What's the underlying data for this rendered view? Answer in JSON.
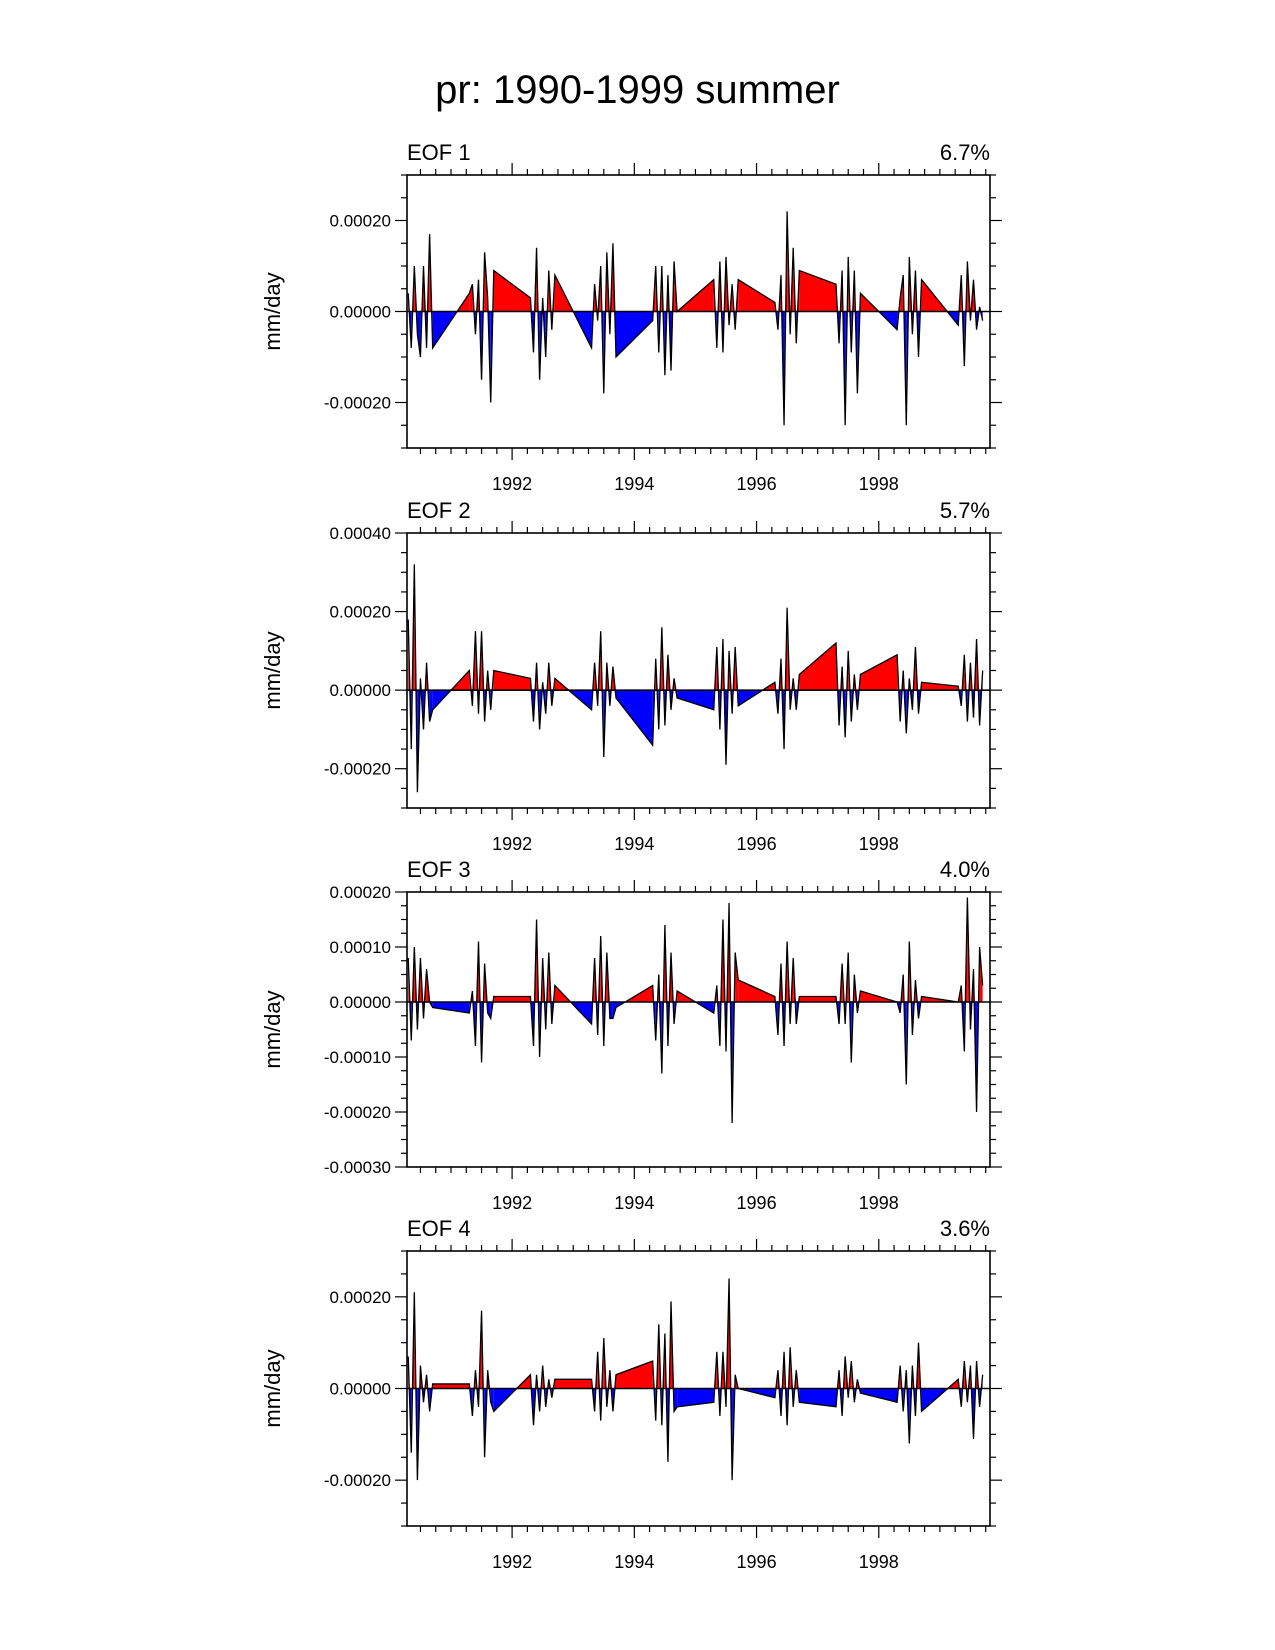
{
  "title": "pr: 1990-1999 summer",
  "colors": {
    "positive": "#ff0000",
    "negative": "#0000ff",
    "line": "#000000"
  },
  "chart_data": [
    {
      "type": "area",
      "panel_label": "EOF 1",
      "variance": "6.7%",
      "ylabel": "mm/day",
      "xlabel": "",
      "xlim": [
        1990.28,
        1999.82
      ],
      "ylim": [
        -0.0003,
        0.0003
      ],
      "yticks": [
        -0.0002,
        0.0,
        0.0002
      ],
      "ytick_labels": [
        "-0.00020",
        "0.00000",
        "0.00020"
      ],
      "xticks": [
        1992,
        1994,
        1996,
        1998
      ],
      "xtick_labels": [
        "1992",
        "1994",
        "1996",
        "1998"
      ],
      "x": [
        1990.3,
        1990.35,
        1990.4,
        1990.45,
        1990.5,
        1990.55,
        1990.6,
        1990.65,
        1990.7,
        1991.3,
        1991.35,
        1991.4,
        1991.45,
        1991.5,
        1991.55,
        1991.6,
        1991.65,
        1991.7,
        1992.3,
        1992.35,
        1992.4,
        1992.45,
        1992.5,
        1992.55,
        1992.6,
        1992.65,
        1992.7,
        1993.3,
        1993.35,
        1993.4,
        1993.45,
        1993.5,
        1993.55,
        1993.6,
        1993.65,
        1993.7,
        1994.3,
        1994.35,
        1994.4,
        1994.45,
        1994.5,
        1994.55,
        1994.6,
        1994.65,
        1994.7,
        1995.3,
        1995.35,
        1995.4,
        1995.45,
        1995.5,
        1995.55,
        1995.6,
        1995.65,
        1995.7,
        1996.3,
        1996.35,
        1996.4,
        1996.45,
        1996.5,
        1996.55,
        1996.6,
        1996.65,
        1996.7,
        1997.3,
        1997.35,
        1997.4,
        1997.45,
        1997.5,
        1997.55,
        1997.6,
        1997.65,
        1997.7,
        1998.3,
        1998.35,
        1998.4,
        1998.45,
        1998.5,
        1998.55,
        1998.6,
        1998.65,
        1998.7,
        1999.3,
        1999.35,
        1999.4,
        1999.45,
        1999.5,
        1999.55,
        1999.6,
        1999.65,
        1999.7
      ],
      "values": [
        4e-05,
        -8e-05,
        0.0001,
        -5e-05,
        -0.0001,
        0.0001,
        -8e-05,
        0.00017,
        -8e-05,
        4e-05,
        6e-05,
        -5e-05,
        7e-05,
        -0.00015,
        0.00013,
        3e-05,
        -0.0002,
        9e-05,
        3e-05,
        -9e-05,
        0.00014,
        -0.00015,
        3e-05,
        -0.0001,
        9e-05,
        -4e-05,
        8e-05,
        -8e-05,
        6e-05,
        -2e-05,
        0.0001,
        -0.00018,
        0.00013,
        -5e-05,
        0.00015,
        -0.0001,
        -2e-05,
        0.0001,
        -9e-05,
        0.0001,
        -0.00014,
        8e-05,
        -0.00013,
        0.00011,
        -0.0,
        7e-05,
        -8e-05,
        0.00011,
        -9e-05,
        0.00012,
        -3e-05,
        6e-05,
        -4e-05,
        7e-05,
        2e-05,
        -4e-05,
        8e-05,
        -0.00025,
        0.00022,
        -5e-05,
        0.00014,
        -7e-05,
        9e-05,
        6e-05,
        -7e-05,
        9e-05,
        -0.00025,
        0.00012,
        -9e-05,
        9e-05,
        -0.00018,
        4e-05,
        -4e-05,
        3e-05,
        8e-05,
        -0.00025,
        0.00012,
        -5e-05,
        9e-05,
        -0.0001,
        7e-05,
        -3e-05,
        8e-05,
        -0.00012,
        0.00011,
        -2e-05,
        7e-05,
        -4e-05,
        1e-05,
        -2e-05
      ]
    },
    {
      "type": "area",
      "panel_label": "EOF 2",
      "variance": "5.7%",
      "ylabel": "mm/day",
      "xlabel": "",
      "xlim": [
        1990.28,
        1999.82
      ],
      "ylim": [
        -0.0003,
        0.0004
      ],
      "yticks": [
        -0.0002,
        0.0,
        0.0002,
        0.0004
      ],
      "ytick_labels": [
        "-0.00020",
        "0.00000",
        "0.00020",
        "0.00040"
      ],
      "xticks": [
        1992,
        1994,
        1996,
        1998
      ],
      "xtick_labels": [
        "1992",
        "1994",
        "1996",
        "1998"
      ],
      "x": [
        1990.3,
        1990.35,
        1990.4,
        1990.45,
        1990.5,
        1990.55,
        1990.6,
        1990.65,
        1990.7,
        1991.3,
        1991.35,
        1991.4,
        1991.45,
        1991.5,
        1991.55,
        1991.6,
        1991.65,
        1991.7,
        1992.3,
        1992.35,
        1992.4,
        1992.45,
        1992.5,
        1992.55,
        1992.6,
        1992.65,
        1992.7,
        1993.3,
        1993.35,
        1993.4,
        1993.45,
        1993.5,
        1993.55,
        1993.6,
        1993.65,
        1993.7,
        1994.3,
        1994.35,
        1994.4,
        1994.45,
        1994.5,
        1994.55,
        1994.6,
        1994.65,
        1994.7,
        1995.3,
        1995.35,
        1995.4,
        1995.45,
        1995.5,
        1995.55,
        1995.6,
        1995.65,
        1995.7,
        1996.3,
        1996.35,
        1996.4,
        1996.45,
        1996.5,
        1996.55,
        1996.6,
        1996.65,
        1996.7,
        1997.3,
        1997.35,
        1997.4,
        1997.45,
        1997.5,
        1997.55,
        1997.6,
        1997.65,
        1997.7,
        1998.3,
        1998.35,
        1998.4,
        1998.45,
        1998.5,
        1998.55,
        1998.6,
        1998.65,
        1998.7,
        1999.3,
        1999.35,
        1999.4,
        1999.45,
        1999.5,
        1999.55,
        1999.6,
        1999.65,
        1999.7
      ],
      "values": [
        0.00018,
        -0.00015,
        0.00032,
        -0.00026,
        3e-05,
        -0.0001,
        7e-05,
        -8e-05,
        -5e-05,
        5e-05,
        -4e-05,
        0.00015,
        -6e-05,
        0.00015,
        -8e-05,
        5e-05,
        -5e-05,
        5e-05,
        3e-05,
        -8e-05,
        7e-05,
        -0.0001,
        2e-05,
        -6e-05,
        7e-05,
        -4e-05,
        3e-05,
        -5e-05,
        7e-05,
        -4e-05,
        0.00015,
        -0.00017,
        7e-05,
        -4e-05,
        6e-05,
        -2e-05,
        -0.00014,
        8e-05,
        -0.0001,
        0.00016,
        -9e-05,
        9e-05,
        -5e-05,
        3e-05,
        -2e-05,
        -5e-05,
        0.00011,
        -0.0001,
        0.00013,
        -0.00019,
        0.0001,
        -6e-05,
        0.00011,
        -4e-05,
        2e-05,
        -6e-05,
        8e-05,
        -0.00015,
        0.00021,
        -5e-05,
        3e-05,
        -5e-05,
        4e-05,
        0.00012,
        -9e-05,
        6e-05,
        -0.00012,
        0.0001,
        -8e-05,
        4e-05,
        -5e-05,
        4e-05,
        9e-05,
        -8e-05,
        5e-05,
        -0.00011,
        3e-05,
        -5e-05,
        0.00011,
        -6e-05,
        2e-05,
        1e-05,
        -4e-05,
        9e-05,
        -8e-05,
        7e-05,
        -7e-05,
        0.00013,
        -9e-05,
        5e-05
      ]
    },
    {
      "type": "area",
      "panel_label": "EOF 3",
      "variance": "4.0%",
      "ylabel": "mm/day",
      "xlabel": "",
      "xlim": [
        1990.28,
        1999.82
      ],
      "ylim": [
        -0.0003,
        0.0002
      ],
      "yticks": [
        -0.0003,
        -0.0002,
        -0.0001,
        0.0,
        0.0001,
        0.0002
      ],
      "ytick_labels": [
        "-0.00030",
        "-0.00020",
        "-0.00010",
        "0.00000",
        "0.00010",
        "0.00020"
      ],
      "xticks": [
        1992,
        1994,
        1996,
        1998
      ],
      "xtick_labels": [
        "1992",
        "1994",
        "1996",
        "1998"
      ],
      "x": [
        1990.3,
        1990.35,
        1990.4,
        1990.45,
        1990.5,
        1990.55,
        1990.6,
        1990.65,
        1990.7,
        1991.3,
        1991.35,
        1991.4,
        1991.45,
        1991.5,
        1991.55,
        1991.6,
        1991.65,
        1991.7,
        1992.3,
        1992.35,
        1992.4,
        1992.45,
        1992.5,
        1992.55,
        1992.6,
        1992.65,
        1992.7,
        1993.3,
        1993.35,
        1993.4,
        1993.45,
        1993.5,
        1993.55,
        1993.6,
        1993.65,
        1993.7,
        1994.3,
        1994.35,
        1994.4,
        1994.45,
        1994.5,
        1994.55,
        1994.6,
        1994.65,
        1994.7,
        1995.3,
        1995.35,
        1995.4,
        1995.45,
        1995.5,
        1995.55,
        1995.6,
        1995.65,
        1995.7,
        1996.3,
        1996.35,
        1996.4,
        1996.45,
        1996.5,
        1996.55,
        1996.6,
        1996.65,
        1996.7,
        1997.3,
        1997.35,
        1997.4,
        1997.45,
        1997.5,
        1997.55,
        1997.6,
        1997.65,
        1997.7,
        1998.3,
        1998.35,
        1998.4,
        1998.45,
        1998.5,
        1998.55,
        1998.6,
        1998.65,
        1998.7,
        1999.3,
        1999.35,
        1999.4,
        1999.45,
        1999.5,
        1999.55,
        1999.6,
        1999.65,
        1999.7
      ],
      "values": [
        8e-05,
        -7e-05,
        0.0001,
        -5e-05,
        8e-05,
        -3e-05,
        6e-05,
        -0.0,
        -1e-05,
        -2e-05,
        2e-05,
        -8e-05,
        0.00011,
        -0.00011,
        7e-05,
        -2e-05,
        -3e-05,
        1e-05,
        1e-05,
        -8e-05,
        0.00015,
        -0.0001,
        8e-05,
        -5e-05,
        9e-05,
        -4e-05,
        3e-05,
        -4e-05,
        8e-05,
        -6e-05,
        0.00012,
        -8e-05,
        9e-05,
        -3e-05,
        -3e-05,
        -1e-05,
        3e-05,
        -7e-05,
        5e-05,
        -0.00013,
        0.00014,
        -8e-05,
        9e-05,
        -4e-05,
        2e-05,
        -2e-05,
        3e-05,
        -8e-05,
        0.00015,
        -9e-05,
        0.00018,
        -0.00022,
        9e-05,
        4e-05,
        1e-05,
        -6e-05,
        7e-05,
        -8e-05,
        0.00011,
        -4e-05,
        8e-05,
        -4e-05,
        1e-05,
        1e-05,
        -4e-05,
        7e-05,
        -4e-05,
        9e-05,
        -0.00011,
        5e-05,
        -2e-05,
        2e-05,
        0.0,
        -2e-05,
        5e-05,
        -0.00015,
        0.00011,
        -6e-05,
        4e-05,
        -3e-05,
        1e-05,
        0.0,
        3e-05,
        -9e-05,
        0.00019,
        -5e-05,
        6e-05,
        -0.0002,
        0.0001,
        3e-05
      ]
    },
    {
      "type": "area",
      "panel_label": "EOF 4",
      "variance": "3.6%",
      "ylabel": "mm/day",
      "xlabel": "",
      "xlim": [
        1990.28,
        1999.82
      ],
      "ylim": [
        -0.0003,
        0.0003
      ],
      "yticks": [
        -0.0002,
        0.0,
        0.0002
      ],
      "ytick_labels": [
        "-0.00020",
        "0.00000",
        "0.00020"
      ],
      "xticks": [
        1992,
        1994,
        1996,
        1998
      ],
      "xtick_labels": [
        "1992",
        "1994",
        "1996",
        "1998"
      ],
      "x": [
        1990.3,
        1990.35,
        1990.4,
        1990.45,
        1990.5,
        1990.55,
        1990.6,
        1990.65,
        1990.7,
        1991.3,
        1991.35,
        1991.4,
        1991.45,
        1991.5,
        1991.55,
        1991.6,
        1991.65,
        1991.7,
        1992.3,
        1992.35,
        1992.4,
        1992.45,
        1992.5,
        1992.55,
        1992.6,
        1992.65,
        1992.7,
        1993.3,
        1993.35,
        1993.4,
        1993.45,
        1993.5,
        1993.55,
        1993.6,
        1993.65,
        1993.7,
        1994.3,
        1994.35,
        1994.4,
        1994.45,
        1994.5,
        1994.55,
        1994.6,
        1994.65,
        1994.7,
        1995.3,
        1995.35,
        1995.4,
        1995.45,
        1995.5,
        1995.55,
        1995.6,
        1995.65,
        1995.7,
        1996.3,
        1996.35,
        1996.4,
        1996.45,
        1996.5,
        1996.55,
        1996.6,
        1996.65,
        1996.7,
        1997.3,
        1997.35,
        1997.4,
        1997.45,
        1997.5,
        1997.55,
        1997.6,
        1997.65,
        1997.7,
        1998.3,
        1998.35,
        1998.4,
        1998.45,
        1998.5,
        1998.55,
        1998.6,
        1998.65,
        1998.7,
        1999.3,
        1999.35,
        1999.4,
        1999.45,
        1999.5,
        1999.55,
        1999.6,
        1999.65,
        1999.7
      ],
      "values": [
        7e-05,
        -0.00014,
        0.00021,
        -0.0002,
        5e-05,
        -3e-05,
        3e-05,
        -5e-05,
        1e-05,
        1e-05,
        -6e-05,
        4e-05,
        -4e-05,
        0.00017,
        -0.00015,
        4e-05,
        -3e-05,
        -5e-05,
        3e-05,
        -8e-05,
        3e-05,
        -5e-05,
        5e-05,
        -4e-05,
        2e-05,
        -2e-05,
        2e-05,
        2e-05,
        -5e-05,
        8e-05,
        -7e-05,
        0.00011,
        -4e-05,
        4e-05,
        -5e-05,
        3e-05,
        6e-05,
        -7e-05,
        0.00014,
        -8e-05,
        0.00012,
        -0.00016,
        0.00019,
        -5e-05,
        -4e-05,
        -3e-05,
        8e-05,
        -6e-05,
        8e-05,
        -4e-05,
        0.00024,
        -0.0002,
        3e-05,
        0.0,
        -2e-05,
        4e-05,
        -6e-05,
        8e-05,
        -8e-05,
        9e-05,
        -4e-05,
        4e-05,
        -3e-05,
        -4e-05,
        4e-05,
        -6e-05,
        7e-05,
        -2e-05,
        6e-05,
        -3e-05,
        2e-05,
        -1e-05,
        -3e-05,
        5e-05,
        -5e-05,
        4e-05,
        -0.00012,
        5e-05,
        -6e-05,
        0.0001,
        -5e-05,
        2e-05,
        -4e-05,
        6e-05,
        -3e-05,
        5e-05,
        -0.00011,
        6e-05,
        -4e-05,
        3e-05
      ]
    }
  ]
}
